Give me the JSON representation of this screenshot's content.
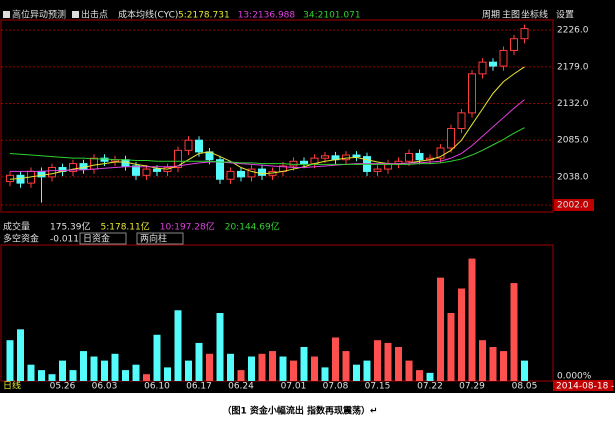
{
  "header": {
    "checks": [
      "高位异动预测",
      "出击点"
    ],
    "indicator": "成本均线(CYC)",
    "buttons": [
      "周期",
      "主图",
      "坐标线",
      "设置"
    ]
  },
  "chart_data": {
    "type": "candlestick",
    "categories": [
      null,
      null,
      null,
      null,
      null,
      "05.26",
      null,
      null,
      null,
      "06.03",
      null,
      null,
      null,
      null,
      "06.10",
      null,
      null,
      null,
      "06.17",
      null,
      null,
      null,
      "06.24",
      null,
      null,
      null,
      null,
      "07.01",
      null,
      null,
      null,
      "07.08",
      null,
      null,
      null,
      "07.15",
      null,
      null,
      null,
      null,
      "07.22",
      null,
      null,
      null,
      "07.29",
      null,
      null,
      null,
      null,
      "08.05"
    ],
    "open": [
      2032,
      2040,
      2030,
      2045,
      2038,
      2050,
      2045,
      2055,
      2048,
      2062,
      2058,
      2060,
      2052,
      2040,
      2048,
      2045,
      2050,
      2072,
      2085,
      2070,
      2060,
      2035,
      2045,
      2038,
      2048,
      2040,
      2045,
      2052,
      2058,
      2055,
      2062,
      2065,
      2060,
      2066,
      2064,
      2045,
      2048,
      2055,
      2058,
      2068,
      2060,
      2062,
      2075,
      2100,
      2120,
      2170,
      2185,
      2180,
      2200,
      2215
    ],
    "high": [
      2045,
      2045,
      2050,
      2050,
      2055,
      2055,
      2060,
      2060,
      2067,
      2067,
      2065,
      2065,
      2057,
      2053,
      2053,
      2055,
      2077,
      2090,
      2090,
      2075,
      2065,
      2050,
      2050,
      2053,
      2053,
      2050,
      2057,
      2063,
      2063,
      2067,
      2070,
      2070,
      2071,
      2071,
      2069,
      2053,
      2060,
      2063,
      2073,
      2073,
      2067,
      2080,
      2105,
      2125,
      2175,
      2190,
      2190,
      2205,
      2220,
      2233
    ],
    "low": [
      2026,
      2024,
      2024,
      2005,
      2032,
      2039,
      2039,
      2042,
      2042,
      2052,
      2052,
      2046,
      2034,
      2034,
      2039,
      2039,
      2044,
      2066,
      2064,
      2054,
      2029,
      2029,
      2032,
      2032,
      2034,
      2034,
      2039,
      2046,
      2049,
      2049,
      2056,
      2054,
      2054,
      2058,
      2039,
      2039,
      2042,
      2049,
      2052,
      2054,
      2054,
      2056,
      2069,
      2094,
      2114,
      2164,
      2174,
      2174,
      2194,
      2209
    ],
    "close": [
      2040,
      2030,
      2045,
      2038,
      2050,
      2045,
      2055,
      2048,
      2062,
      2058,
      2060,
      2052,
      2040,
      2048,
      2045,
      2050,
      2072,
      2085,
      2070,
      2060,
      2035,
      2045,
      2038,
      2048,
      2040,
      2045,
      2052,
      2058,
      2055,
      2062,
      2065,
      2060,
      2066,
      2064,
      2045,
      2048,
      2055,
      2058,
      2068,
      2060,
      2062,
      2075,
      2100,
      2120,
      2170,
      2185,
      2180,
      2200,
      2215,
      2228
    ],
    "up_color": "#ff3c3c",
    "down_color": "#54fcfc",
    "series": [
      {
        "name": "5:2178.731",
        "color": "#e8e832",
        "values": [
          2035,
          2036,
          2038,
          2040,
          2042,
          2045,
          2048,
          2050,
          2053,
          2055,
          2057,
          2057,
          2054,
          2052,
          2049,
          2048,
          2052,
          2060,
          2068,
          2070,
          2064,
          2058,
          2050,
          2045,
          2042,
          2043,
          2045,
          2048,
          2051,
          2055,
          2058,
          2060,
          2062,
          2063,
          2060,
          2057,
          2055,
          2054,
          2056,
          2058,
          2060,
          2064,
          2072,
          2085,
          2105,
          2125,
          2145,
          2160,
          2170,
          2179
        ]
      },
      {
        "name": "13:2136.988",
        "color": "#e040e0",
        "values": [
          2045,
          2045,
          2045,
          2045,
          2046,
          2046,
          2047,
          2047,
          2048,
          2049,
          2050,
          2051,
          2051,
          2051,
          2051,
          2051,
          2052,
          2054,
          2056,
          2057,
          2057,
          2056,
          2055,
          2054,
          2053,
          2052,
          2051,
          2050,
          2050,
          2051,
          2052,
          2053,
          2054,
          2055,
          2055,
          2055,
          2055,
          2055,
          2056,
          2056,
          2057,
          2058,
          2062,
          2068,
          2078,
          2090,
          2102,
          2114,
          2126,
          2137
        ]
      },
      {
        "name": "34:2101.071",
        "color": "#30d030",
        "values": [
          2068,
          2067,
          2066,
          2065,
          2064,
          2063,
          2062,
          2062,
          2061,
          2061,
          2060,
          2060,
          2059,
          2059,
          2058,
          2058,
          2058,
          2058,
          2058,
          2058,
          2057,
          2057,
          2056,
          2056,
          2055,
          2055,
          2055,
          2054,
          2054,
          2054,
          2054,
          2054,
          2054,
          2054,
          2054,
          2054,
          2054,
          2054,
          2054,
          2055,
          2055,
          2056,
          2058,
          2061,
          2066,
          2072,
          2079,
          2086,
          2094,
          2101
        ]
      }
    ],
    "ylim": [
      1993,
      2239
    ],
    "yticks": [
      {
        "value": 2226,
        "label": "2226.0"
      },
      {
        "value": 2179,
        "label": "2179.0"
      },
      {
        "value": 2132,
        "label": "2132.0"
      },
      {
        "value": 2085,
        "label": "2085.0"
      },
      {
        "value": 2038,
        "label": "2038.0"
      },
      {
        "value": 2002,
        "label": "2002.0"
      }
    ],
    "grid": true
  },
  "volume": {
    "label": "成交量",
    "items": [
      {
        "text": "175.39亿",
        "color": "#e0e0e0"
      },
      {
        "text": "5:178.11亿",
        "color": "#e8e832"
      },
      {
        "text": "10:197.28亿",
        "color": "#e040e0"
      },
      {
        "text": "20:144.69亿",
        "color": "#30d030"
      }
    ]
  },
  "fund": {
    "type": "bar",
    "title": "多空资金",
    "value_text": "-0.011%",
    "selectors": [
      "日资金",
      "两向柱"
    ],
    "values": [
      30,
      38,
      12,
      8,
      5,
      15,
      8,
      22,
      18,
      15,
      20,
      8,
      12,
      5,
      34,
      10,
      52,
      15,
      28,
      20,
      50,
      20,
      8,
      18,
      20,
      22,
      18,
      15,
      25,
      18,
      10,
      32,
      22,
      12,
      15,
      30,
      28,
      25,
      15,
      8,
      6,
      76,
      50,
      68,
      90,
      30,
      25,
      22,
      72,
      15
    ],
    "colors": [
      "#54fcfc",
      "#54fcfc",
      "#54fcfc",
      "#54fcfc",
      "#54fcfc",
      "#54fcfc",
      "#54fcfc",
      "#54fcfc",
      "#54fcfc",
      "#54fcfc",
      "#54fcfc",
      "#54fcfc",
      "#54fcfc",
      "#ff5050",
      "#54fcfc",
      "#54fcfc",
      "#54fcfc",
      "#54fcfc",
      "#54fcfc",
      "#ff5050",
      "#54fcfc",
      "#54fcfc",
      "#ff5050",
      "#54fcfc",
      "#ff5050",
      "#ff5050",
      "#54fcfc",
      "#ff5050",
      "#54fcfc",
      "#ff5050",
      "#54fcfc",
      "#ff5050",
      "#ff5050",
      "#54fcfc",
      "#54fcfc",
      "#ff5050",
      "#ff5050",
      "#ff5050",
      "#ff5050",
      "#ff5050",
      "#54fcfc",
      "#ff5050",
      "#ff5050",
      "#ff5050",
      "#ff5050",
      "#ff5050",
      "#ff5050",
      "#ff5050",
      "#ff5050",
      "#54fcfc"
    ],
    "ylim": [
      0,
      100
    ],
    "yticks": [
      {
        "value": 0,
        "label": "0.000%"
      }
    ]
  },
  "footer": {
    "period": "日线",
    "date": "2014-08-18 -"
  },
  "caption": "（图1  资金小幅流出 指数再现震荡）↵"
}
